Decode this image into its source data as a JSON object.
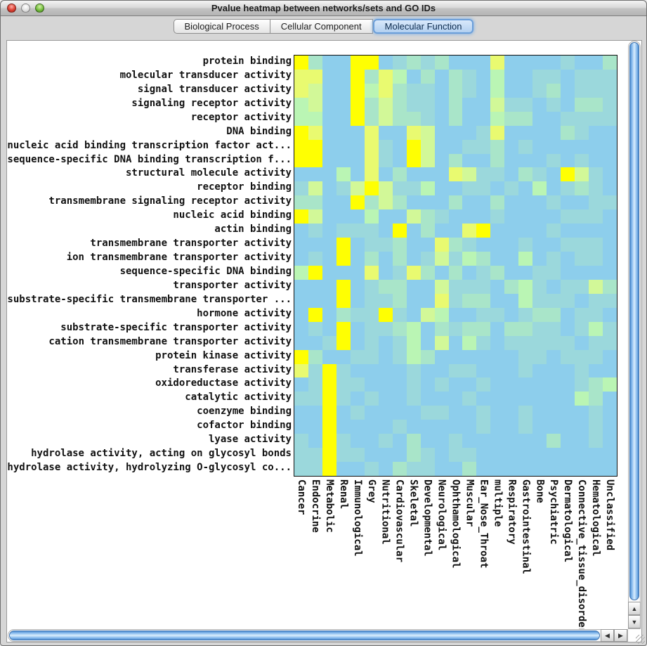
{
  "window": {
    "title": "Pvalue heatmap between networks/sets and GO IDs",
    "traffic_lights": [
      "close",
      "minimize",
      "zoom"
    ]
  },
  "tabs": [
    {
      "label": "Biological Process",
      "active": false
    },
    {
      "label": "Cellular Component",
      "active": false
    },
    {
      "label": "Molecular Function",
      "active": true
    }
  ],
  "heatmap": {
    "palette": {
      "0": "#8DCEEC",
      "1": "#9BD8DC",
      "2": "#A9E5C9",
      "3": "#BAF5B4",
      "4": "#D2F898",
      "5": "#E9FA70",
      "6": "#FFFF02"
    },
    "border_color": "#101010"
  },
  "scrollbars": {
    "vertical": {
      "up_icon": "▲",
      "down_icon": "▼"
    },
    "horizontal": {
      "left_icon": "◀",
      "right_icon": "▶"
    }
  },
  "chart_data": {
    "type": "heatmap",
    "title": "Pvalue heatmap between networks/sets and GO IDs",
    "tab": "Molecular Function",
    "legend": "no colorbar shown; cell color encodes p-value significance from blue (level 0, not significant) to yellow (level 6, most significant)",
    "rows": [
      "protein binding",
      "molecular transducer activity",
      "signal transducer activity",
      "signaling receptor activity",
      "receptor activity",
      "DNA binding",
      "nucleic acid binding transcription factor act...",
      "sequence-specific DNA binding transcription f...",
      "structural molecule activity",
      "receptor binding",
      "transmembrane signaling receptor activity",
      "nucleic acid binding",
      "actin binding",
      "transmembrane transporter activity",
      "ion transmembrane transporter activity",
      "sequence-specific DNA binding",
      "transporter activity",
      "substrate-specific transmembrane transporter ...",
      "hormone activity",
      "substrate-specific transporter activity",
      "cation transmembrane transporter activity",
      "protein kinase activity",
      "transferase activity",
      "oxidoreductase activity",
      "catalytic activity",
      "coenzyme binding",
      "cofactor binding",
      "lyase activity",
      "hydrolase activity, acting on glycosyl bonds",
      "hydrolase activity, hydrolyzing O-glycosyl co..."
    ],
    "columns": [
      "Cancer",
      "Endocrine",
      "Metabolic",
      "Renal",
      "Immunological",
      "Grey",
      "Nutritional",
      "Cardiovascular",
      "Skeletal",
      "Developmental",
      "Neurological",
      "Ophthamological",
      "Muscular",
      "Ear_Nose_Throat",
      "multiple",
      "Respiratory",
      "Gastrointestinal",
      "Bone",
      "Psychiatric",
      "Dermatological",
      "Connective_tissue_disorder",
      "Hematological",
      "Unclassified"
    ],
    "values": [
      [
        6,
        2,
        0,
        0,
        6,
        6,
        0,
        1,
        2,
        1,
        2,
        0,
        0,
        0,
        5,
        0,
        0,
        0,
        0,
        1,
        0,
        0,
        2
      ],
      [
        5,
        5,
        0,
        0,
        6,
        2,
        5,
        3,
        0,
        2,
        0,
        2,
        1,
        0,
        3,
        0,
        0,
        1,
        1,
        0,
        1,
        1,
        1
      ],
      [
        5,
        4,
        0,
        0,
        6,
        3,
        5,
        2,
        1,
        1,
        0,
        2,
        1,
        0,
        3,
        0,
        0,
        1,
        2,
        0,
        1,
        1,
        1
      ],
      [
        3,
        4,
        0,
        0,
        6,
        2,
        4,
        2,
        1,
        1,
        0,
        2,
        0,
        0,
        4,
        1,
        1,
        0,
        1,
        0,
        2,
        2,
        1
      ],
      [
        3,
        3,
        0,
        0,
        6,
        2,
        4,
        2,
        2,
        1,
        0,
        2,
        0,
        0,
        3,
        2,
        2,
        0,
        0,
        1,
        1,
        1,
        1
      ],
      [
        6,
        5,
        0,
        0,
        0,
        5,
        0,
        0,
        5,
        4,
        0,
        0,
        0,
        1,
        5,
        0,
        0,
        0,
        0,
        2,
        1,
        0,
        0
      ],
      [
        6,
        6,
        0,
        0,
        0,
        5,
        1,
        0,
        6,
        4,
        0,
        0,
        1,
        1,
        2,
        0,
        1,
        0,
        0,
        0,
        0,
        0,
        0
      ],
      [
        6,
        6,
        0,
        0,
        0,
        5,
        1,
        0,
        6,
        4,
        0,
        2,
        0,
        0,
        2,
        0,
        0,
        0,
        1,
        0,
        1,
        0,
        0
      ],
      [
        0,
        0,
        0,
        3,
        0,
        5,
        0,
        2,
        0,
        0,
        0,
        5,
        4,
        1,
        1,
        0,
        2,
        1,
        0,
        6,
        4,
        1,
        0
      ],
      [
        1,
        4,
        0,
        1,
        4,
        6,
        4,
        1,
        1,
        3,
        0,
        0,
        1,
        1,
        0,
        1,
        0,
        3,
        0,
        1,
        2,
        1,
        0
      ],
      [
        2,
        2,
        0,
        0,
        6,
        2,
        4,
        2,
        0,
        0,
        0,
        2,
        0,
        0,
        2,
        0,
        0,
        0,
        1,
        0,
        0,
        1,
        1
      ],
      [
        6,
        4,
        0,
        0,
        0,
        3,
        0,
        0,
        4,
        2,
        1,
        0,
        0,
        0,
        1,
        0,
        0,
        0,
        0,
        1,
        1,
        1,
        0
      ],
      [
        0,
        1,
        0,
        1,
        1,
        1,
        0,
        6,
        0,
        2,
        0,
        0,
        5,
        6,
        0,
        0,
        0,
        0,
        1,
        0,
        0,
        0,
        0
      ],
      [
        0,
        0,
        0,
        6,
        0,
        1,
        1,
        2,
        0,
        0,
        5,
        2,
        1,
        0,
        0,
        0,
        1,
        0,
        0,
        1,
        1,
        1,
        0
      ],
      [
        0,
        1,
        0,
        6,
        0,
        2,
        0,
        2,
        0,
        1,
        4,
        1,
        3,
        2,
        0,
        0,
        3,
        0,
        1,
        0,
        1,
        1,
        0
      ],
      [
        3,
        6,
        0,
        0,
        0,
        5,
        0,
        1,
        5,
        2,
        0,
        2,
        0,
        1,
        2,
        0,
        0,
        1,
        1,
        0,
        0,
        0,
        0
      ],
      [
        0,
        0,
        0,
        6,
        0,
        1,
        2,
        2,
        0,
        0,
        4,
        1,
        1,
        1,
        0,
        2,
        3,
        1,
        0,
        1,
        1,
        4,
        2
      ],
      [
        0,
        0,
        0,
        6,
        0,
        1,
        1,
        2,
        0,
        0,
        5,
        1,
        2,
        2,
        0,
        0,
        3,
        1,
        1,
        1,
        0,
        1,
        1
      ],
      [
        0,
        6,
        0,
        2,
        1,
        1,
        6,
        1,
        0,
        4,
        3,
        0,
        0,
        1,
        1,
        0,
        1,
        2,
        2,
        0,
        1,
        1,
        0
      ],
      [
        0,
        1,
        0,
        6,
        0,
        1,
        1,
        2,
        3,
        0,
        2,
        1,
        2,
        2,
        0,
        2,
        2,
        1,
        1,
        0,
        1,
        3,
        1
      ],
      [
        0,
        0,
        1,
        6,
        0,
        1,
        0,
        1,
        3,
        0,
        4,
        0,
        3,
        1,
        0,
        1,
        1,
        1,
        1,
        1,
        0,
        1,
        1
      ],
      [
        6,
        2,
        0,
        0,
        1,
        1,
        0,
        1,
        3,
        2,
        0,
        0,
        0,
        0,
        0,
        0,
        1,
        1,
        0,
        1,
        1,
        1,
        0
      ],
      [
        5,
        1,
        6,
        1,
        0,
        0,
        0,
        0,
        1,
        0,
        0,
        1,
        1,
        0,
        0,
        0,
        1,
        0,
        0,
        0,
        1,
        0,
        0
      ],
      [
        0,
        1,
        6,
        1,
        1,
        0,
        0,
        0,
        1,
        0,
        1,
        0,
        0,
        1,
        0,
        0,
        0,
        0,
        0,
        0,
        1,
        2,
        3
      ],
      [
        1,
        1,
        6,
        1,
        0,
        1,
        0,
        0,
        1,
        0,
        0,
        0,
        1,
        0,
        0,
        0,
        0,
        0,
        0,
        0,
        3,
        2,
        0
      ],
      [
        0,
        0,
        6,
        0,
        1,
        0,
        0,
        0,
        0,
        1,
        1,
        0,
        0,
        1,
        0,
        0,
        1,
        0,
        0,
        0,
        0,
        1,
        0
      ],
      [
        0,
        0,
        6,
        0,
        0,
        0,
        0,
        1,
        0,
        0,
        0,
        0,
        0,
        1,
        0,
        0,
        1,
        0,
        0,
        0,
        0,
        1,
        0
      ],
      [
        1,
        0,
        6,
        1,
        0,
        0,
        1,
        0,
        2,
        0,
        0,
        1,
        0,
        0,
        0,
        0,
        0,
        0,
        2,
        0,
        0,
        1,
        0
      ],
      [
        1,
        1,
        6,
        1,
        1,
        0,
        0,
        0,
        2,
        1,
        0,
        1,
        1,
        0,
        0,
        0,
        0,
        0,
        0,
        0,
        0,
        0,
        0
      ],
      [
        1,
        1,
        6,
        0,
        0,
        1,
        0,
        2,
        1,
        1,
        0,
        0,
        2,
        0,
        0,
        0,
        0,
        0,
        0,
        0,
        0,
        0,
        0
      ]
    ]
  }
}
